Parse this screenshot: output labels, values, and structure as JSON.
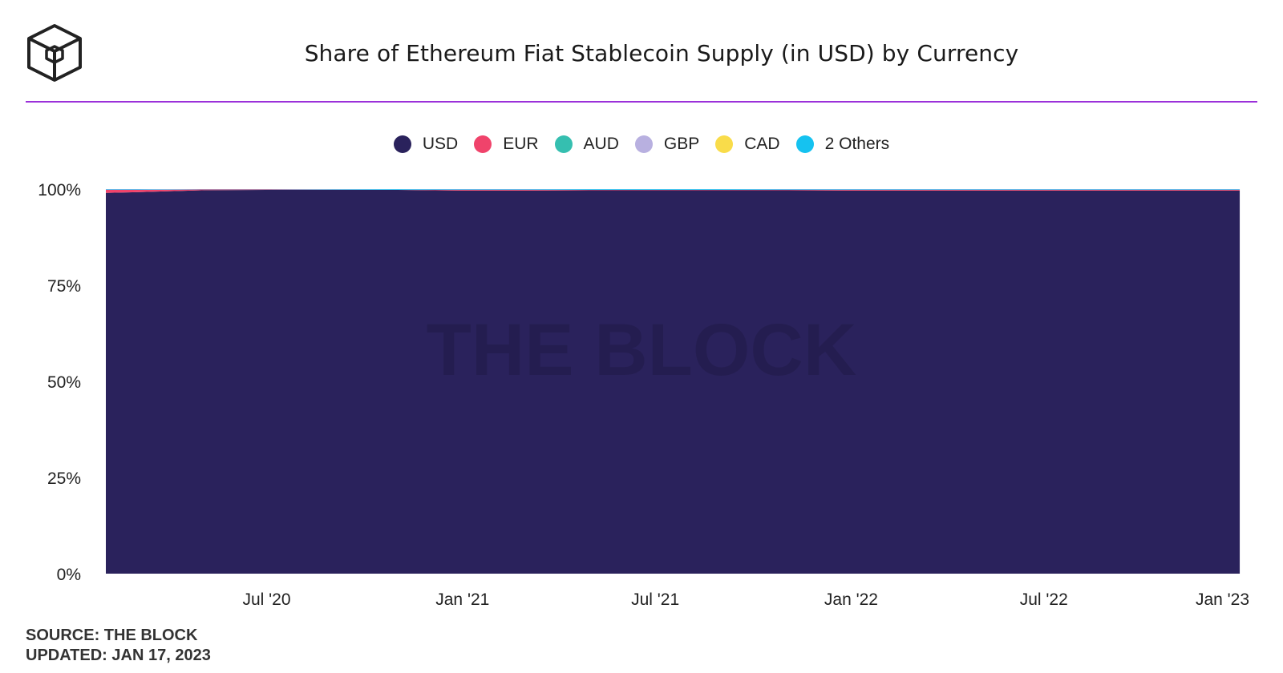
{
  "header": {
    "title": "Share of Ethereum Fiat Stablecoin Supply (in USD) by Currency",
    "logo_icon": "the-block-cube-logo",
    "rule_color": "#9b30d9"
  },
  "legend": [
    {
      "label": "USD",
      "color": "#2a225c"
    },
    {
      "label": "EUR",
      "color": "#f0436b"
    },
    {
      "label": "AUD",
      "color": "#35bfb0"
    },
    {
      "label": "GBP",
      "color": "#b8b0e0"
    },
    {
      "label": "CAD",
      "color": "#f9dc4a"
    },
    {
      "label": "2 Others",
      "color": "#15c2f0"
    }
  ],
  "watermark": "THE BLOCK",
  "footer": {
    "source": "SOURCE: THE BLOCK",
    "updated": "UPDATED: JAN 17, 2023"
  },
  "chart_data": {
    "type": "area",
    "stacked": true,
    "normalized": true,
    "x": [
      "2020-02-01",
      "2020-03-01",
      "2020-05-01",
      "2020-07-01",
      "2020-11-01",
      "2021-01-01",
      "2021-03-01",
      "2021-05-01",
      "2021-07-01",
      "2021-09-01",
      "2021-11-01",
      "2022-01-01",
      "2022-03-01",
      "2022-05-01",
      "2022-07-01",
      "2022-09-01",
      "2022-11-01",
      "2023-01-01"
    ],
    "series": [
      {
        "name": "USD",
        "color": "#2a225c",
        "values": [
          99.0,
          99.2,
          99.7,
          99.8,
          99.8,
          99.6,
          99.6,
          99.7,
          99.7,
          99.7,
          99.7,
          99.6,
          99.6,
          99.6,
          99.6,
          99.6,
          99.6,
          99.6
        ]
      },
      {
        "name": "EUR",
        "color": "#f0436b",
        "values": [
          0.8,
          0.6,
          0.2,
          0.1,
          0.0,
          0.2,
          0.2,
          0.1,
          0.1,
          0.1,
          0.1,
          0.2,
          0.2,
          0.2,
          0.2,
          0.2,
          0.2,
          0.2
        ]
      },
      {
        "name": "AUD",
        "color": "#35bfb0",
        "values": [
          0.0,
          0.0,
          0.0,
          0.0,
          0.0,
          0.0,
          0.0,
          0.0,
          0.0,
          0.0,
          0.0,
          0.0,
          0.0,
          0.0,
          0.0,
          0.0,
          0.0,
          0.0
        ]
      },
      {
        "name": "GBP",
        "color": "#b8b0e0",
        "values": [
          0.1,
          0.1,
          0.05,
          0.05,
          0.05,
          0.1,
          0.1,
          0.05,
          0.05,
          0.05,
          0.1,
          0.1,
          0.1,
          0.1,
          0.1,
          0.1,
          0.1,
          0.1
        ]
      },
      {
        "name": "CAD",
        "color": "#f9dc4a",
        "values": [
          0.0,
          0.0,
          0.0,
          0.0,
          0.0,
          0.0,
          0.0,
          0.0,
          0.0,
          0.0,
          0.0,
          0.0,
          0.0,
          0.0,
          0.0,
          0.0,
          0.0,
          0.0
        ]
      },
      {
        "name": "2 Others",
        "color": "#15c2f0",
        "values": [
          0.1,
          0.1,
          0.05,
          0.05,
          0.15,
          0.1,
          0.1,
          0.15,
          0.15,
          0.15,
          0.1,
          0.1,
          0.1,
          0.1,
          0.1,
          0.1,
          0.1,
          0.1
        ]
      }
    ],
    "y_ticks": [
      "0%",
      "25%",
      "50%",
      "75%",
      "100%"
    ],
    "y_tick_values": [
      0,
      25,
      50,
      75,
      100
    ],
    "ylim": [
      0,
      100
    ],
    "x_ticks": [
      "Jul '20",
      "Jan '21",
      "Jul '21",
      "Jan '22",
      "Jul '22",
      "Jan '23"
    ],
    "x_tick_dates": [
      "2020-07-01",
      "2021-01-01",
      "2021-07-01",
      "2022-01-01",
      "2022-07-01",
      "2023-01-01"
    ],
    "xlim": [
      "2020-02-01",
      "2023-01-10"
    ],
    "grid": false,
    "legend_position": "top-center"
  }
}
